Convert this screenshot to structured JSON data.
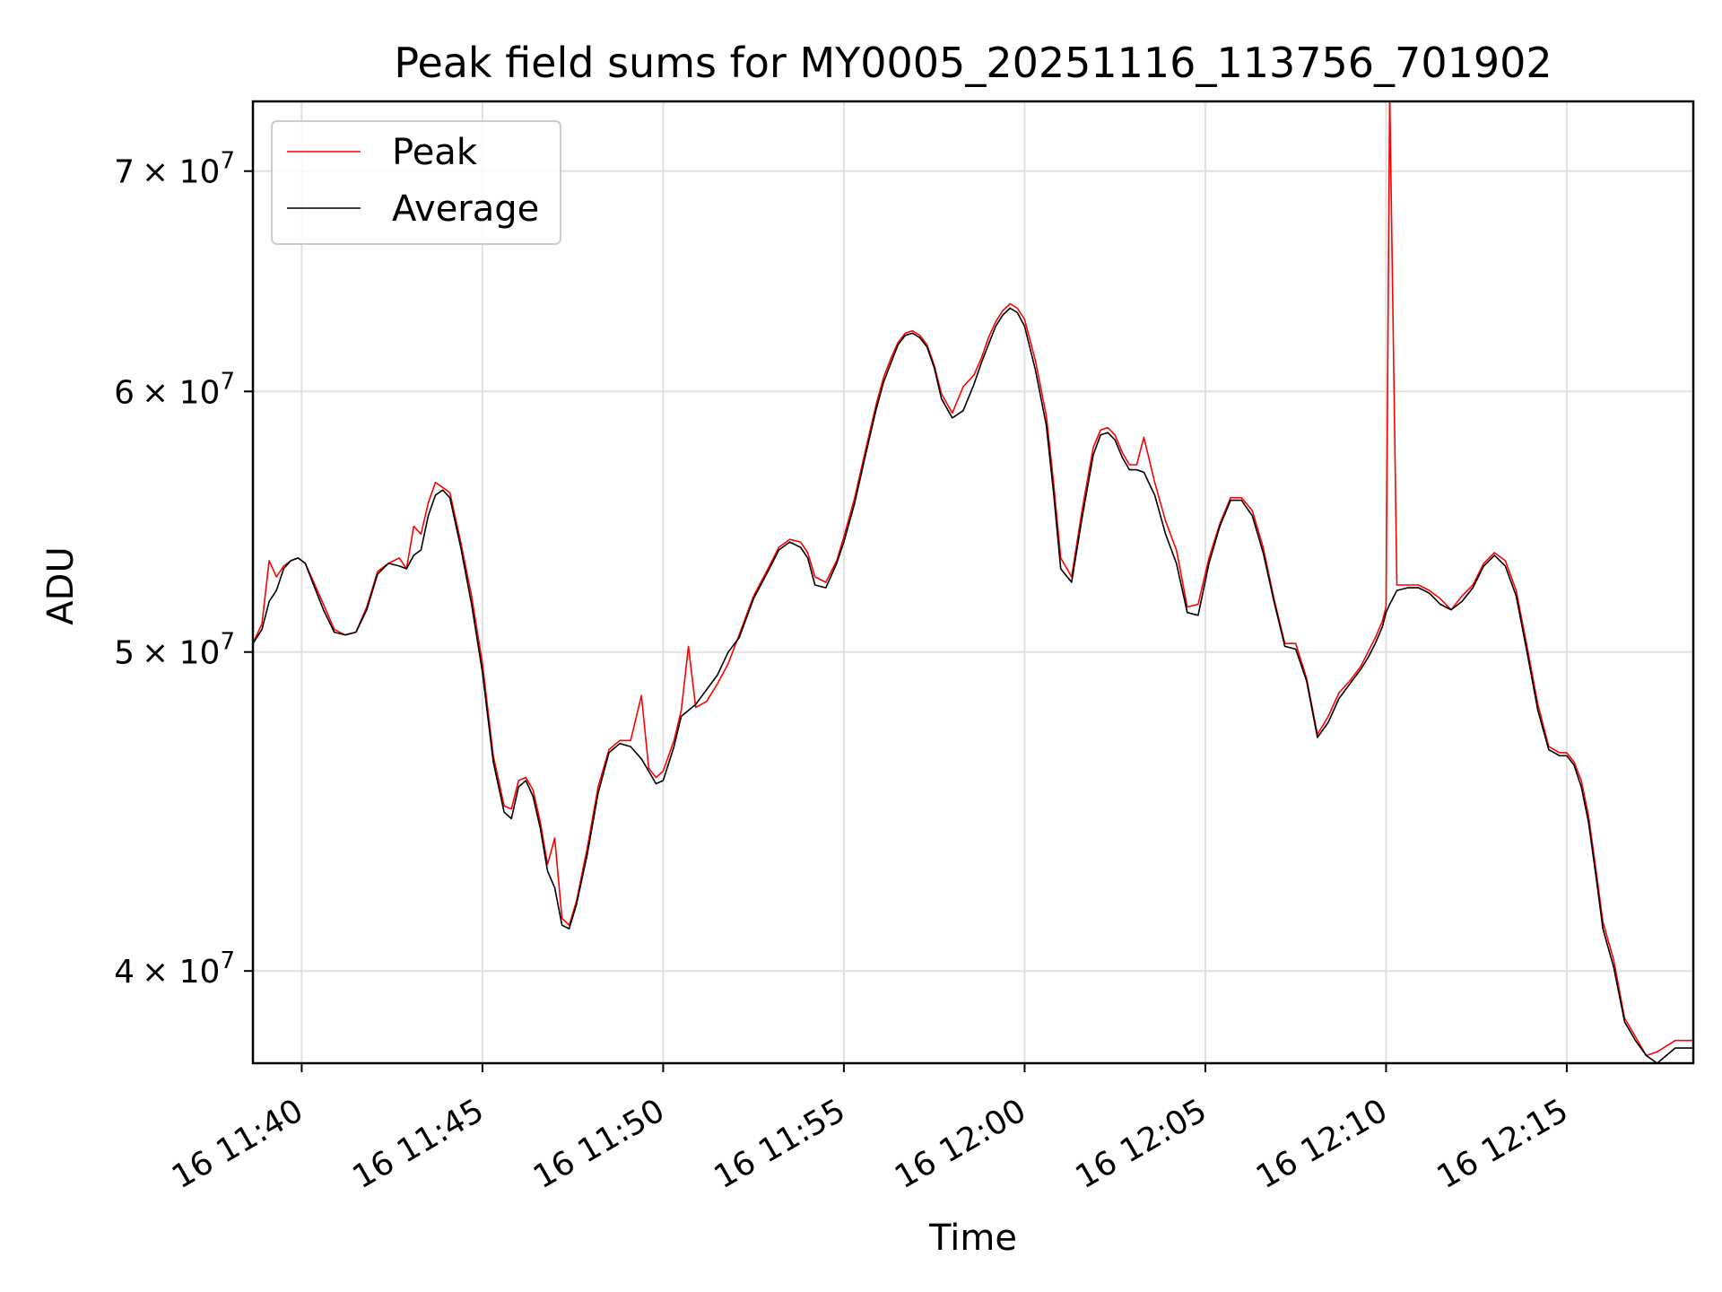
{
  "chart_data": {
    "type": "line",
    "title": "Peak field sums for MY0005_20251116_113756_701902",
    "xlabel": "Time",
    "ylabel": "ADU",
    "yscale": "log",
    "grid": true,
    "legend_position": "top-left",
    "xlim_minutes": [
      -1.35,
      38.5
    ],
    "ylim": [
      37500000,
      73500000
    ],
    "x_ticks": [
      {
        "minutes": 0,
        "label": "16 11:40"
      },
      {
        "minutes": 5,
        "label": "16 11:45"
      },
      {
        "minutes": 10,
        "label": "16 11:50"
      },
      {
        "minutes": 15,
        "label": "16 11:55"
      },
      {
        "minutes": 20,
        "label": "16 12:00"
      },
      {
        "minutes": 25,
        "label": "16 12:05"
      },
      {
        "minutes": 30,
        "label": "16 12:10"
      },
      {
        "minutes": 35,
        "label": "16 12:15"
      }
    ],
    "y_ticks": [
      {
        "value": 40000000,
        "mantissa": "4",
        "label": "4 × 10^7"
      },
      {
        "value": 50000000,
        "mantissa": "5",
        "label": "5 × 10^7"
      },
      {
        "value": 60000000,
        "mantissa": "6",
        "label": "6 × 10^7"
      },
      {
        "value": 70000000,
        "mantissa": "7",
        "label": "7 × 10^7"
      }
    ],
    "y_tick_suffix": "× 10",
    "y_tick_exponent": "7",
    "x_time_reference": "16 11:40 = minute 0",
    "series": [
      {
        "name": "Peak",
        "color": "#ff0000",
        "x_minutes": [
          -1.35,
          -1.1,
          -0.9,
          -0.7,
          -0.5,
          -0.3,
          -0.1,
          0.1,
          0.3,
          0.6,
          0.9,
          1.2,
          1.5,
          1.8,
          2.1,
          2.4,
          2.7,
          2.9,
          3.1,
          3.3,
          3.5,
          3.7,
          3.9,
          4.1,
          4.4,
          4.7,
          5.0,
          5.3,
          5.6,
          5.8,
          6.0,
          6.2,
          6.4,
          6.6,
          6.8,
          7.0,
          7.2,
          7.4,
          7.6,
          7.9,
          8.2,
          8.5,
          8.8,
          9.1,
          9.4,
          9.6,
          9.8,
          10.0,
          10.3,
          10.5,
          10.7,
          10.9,
          11.2,
          11.5,
          11.8,
          12.1,
          12.5,
          12.9,
          13.2,
          13.5,
          13.8,
          14.0,
          14.2,
          14.5,
          14.8,
          15.0,
          15.3,
          15.6,
          15.9,
          16.1,
          16.3,
          16.5,
          16.7,
          16.9,
          17.1,
          17.3,
          17.5,
          17.7,
          18.0,
          18.3,
          18.6,
          18.8,
          19.0,
          19.2,
          19.4,
          19.6,
          19.8,
          20.0,
          20.3,
          20.6,
          20.8,
          21.0,
          21.3,
          21.6,
          21.9,
          22.1,
          22.3,
          22.5,
          22.7,
          22.9,
          23.1,
          23.3,
          23.6,
          23.9,
          24.2,
          24.5,
          24.8,
          25.1,
          25.4,
          25.7,
          26.0,
          26.3,
          26.6,
          26.9,
          27.2,
          27.5,
          27.8,
          28.1,
          28.4,
          28.7,
          29.0,
          29.3,
          29.5,
          29.7,
          29.9,
          30.0,
          30.1,
          30.3,
          30.6,
          30.9,
          31.2,
          31.5,
          31.8,
          32.1,
          32.4,
          32.7,
          33.0,
          33.3,
          33.6,
          33.9,
          34.2,
          34.5,
          34.8,
          35.0,
          35.2,
          35.4,
          35.6,
          35.8,
          36.0,
          36.3,
          36.6,
          36.9,
          37.2,
          37.5,
          38.0,
          38.5
        ],
        "values": [
          50300000,
          51000000,
          53300000,
          52700000,
          53100000,
          53300000,
          53400000,
          53200000,
          52600000,
          51700000,
          50800000,
          50600000,
          50700000,
          51600000,
          52900000,
          53200000,
          53400000,
          53000000,
          54600000,
          54300000,
          55500000,
          56300000,
          56100000,
          55900000,
          54000000,
          52000000,
          49600000,
          46500000,
          44900000,
          44800000,
          45700000,
          45800000,
          45400000,
          44400000,
          43100000,
          43900000,
          41500000,
          41300000,
          42000000,
          43600000,
          45500000,
          46700000,
          47000000,
          47000000,
          48500000,
          46100000,
          45800000,
          46000000,
          47000000,
          48000000,
          50200000,
          48100000,
          48300000,
          48900000,
          49600000,
          50600000,
          52000000,
          53000000,
          53800000,
          54100000,
          54000000,
          53600000,
          52700000,
          52500000,
          53300000,
          54200000,
          55700000,
          57600000,
          59500000,
          60600000,
          61400000,
          62100000,
          62500000,
          62600000,
          62400000,
          62000000,
          61100000,
          59900000,
          59100000,
          60200000,
          60700000,
          61400000,
          62300000,
          63000000,
          63500000,
          63800000,
          63600000,
          63100000,
          61300000,
          59000000,
          56300000,
          53400000,
          52700000,
          55300000,
          57700000,
          58400000,
          58500000,
          58200000,
          57500000,
          57000000,
          57000000,
          58100000,
          56300000,
          54800000,
          53700000,
          51600000,
          51700000,
          53400000,
          54700000,
          55700000,
          55700000,
          55200000,
          53800000,
          51900000,
          50300000,
          50300000,
          49100000,
          47200000,
          47800000,
          48600000,
          49000000,
          49500000,
          50000000,
          50500000,
          51100000,
          51600000,
          74000000,
          52400000,
          52400000,
          52400000,
          52200000,
          51900000,
          51500000,
          52000000,
          52400000,
          53200000,
          53600000,
          53300000,
          52200000,
          50200000,
          48200000,
          46800000,
          46600000,
          46600000,
          46300000,
          45700000,
          44600000,
          43000000,
          41400000,
          40300000,
          38700000,
          38200000,
          37700000,
          37800000,
          38100000,
          38100000
        ]
      },
      {
        "name": "Average",
        "color": "#000000",
        "x_minutes": [
          -1.35,
          -1.1,
          -0.9,
          -0.7,
          -0.5,
          -0.3,
          -0.1,
          0.1,
          0.3,
          0.6,
          0.9,
          1.2,
          1.5,
          1.8,
          2.1,
          2.4,
          2.7,
          2.9,
          3.1,
          3.3,
          3.5,
          3.7,
          3.9,
          4.1,
          4.4,
          4.7,
          5.0,
          5.3,
          5.6,
          5.8,
          6.0,
          6.2,
          6.4,
          6.6,
          6.8,
          7.0,
          7.2,
          7.4,
          7.6,
          7.9,
          8.2,
          8.5,
          8.8,
          9.1,
          9.4,
          9.6,
          9.8,
          10.0,
          10.3,
          10.5,
          10.7,
          10.9,
          11.2,
          11.5,
          11.8,
          12.1,
          12.5,
          12.9,
          13.2,
          13.5,
          13.8,
          14.0,
          14.2,
          14.5,
          14.8,
          15.0,
          15.3,
          15.6,
          15.9,
          16.1,
          16.3,
          16.5,
          16.7,
          16.9,
          17.1,
          17.3,
          17.5,
          17.7,
          18.0,
          18.3,
          18.6,
          18.8,
          19.0,
          19.2,
          19.4,
          19.6,
          19.8,
          20.0,
          20.3,
          20.6,
          20.8,
          21.0,
          21.3,
          21.6,
          21.9,
          22.1,
          22.3,
          22.5,
          22.7,
          22.9,
          23.1,
          23.3,
          23.6,
          23.9,
          24.2,
          24.5,
          24.8,
          25.1,
          25.4,
          25.7,
          26.0,
          26.3,
          26.6,
          26.9,
          27.2,
          27.5,
          27.8,
          28.1,
          28.4,
          28.7,
          29.0,
          29.3,
          29.5,
          29.7,
          29.9,
          30.0,
          30.1,
          30.3,
          30.6,
          30.9,
          31.2,
          31.5,
          31.8,
          32.1,
          32.4,
          32.7,
          33.0,
          33.3,
          33.6,
          33.9,
          34.2,
          34.5,
          34.8,
          35.0,
          35.2,
          35.4,
          35.6,
          35.8,
          36.0,
          36.3,
          36.6,
          36.9,
          37.2,
          37.5,
          38.0,
          38.5
        ],
        "values": [
          50300000,
          50800000,
          51800000,
          52200000,
          53000000,
          53300000,
          53400000,
          53200000,
          52500000,
          51500000,
          50700000,
          50600000,
          50700000,
          51500000,
          52800000,
          53200000,
          53100000,
          53000000,
          53500000,
          53700000,
          55000000,
          55800000,
          56000000,
          55700000,
          53800000,
          51700000,
          49300000,
          46300000,
          44700000,
          44500000,
          45500000,
          45700000,
          45200000,
          44200000,
          42900000,
          42400000,
          41300000,
          41200000,
          41900000,
          43400000,
          45300000,
          46600000,
          46900000,
          46800000,
          46400000,
          46000000,
          45600000,
          45700000,
          46800000,
          47800000,
          48000000,
          48200000,
          48700000,
          49200000,
          50000000,
          50500000,
          51900000,
          52900000,
          53700000,
          54000000,
          53800000,
          53400000,
          52400000,
          52300000,
          53200000,
          54000000,
          55500000,
          57400000,
          59300000,
          60400000,
          61200000,
          62000000,
          62400000,
          62500000,
          62300000,
          61900000,
          61000000,
          59700000,
          58900000,
          59200000,
          60300000,
          61200000,
          62000000,
          62800000,
          63300000,
          63600000,
          63400000,
          62800000,
          60900000,
          58600000,
          55900000,
          53000000,
          52500000,
          55000000,
          57400000,
          58200000,
          58300000,
          58000000,
          57300000,
          56800000,
          56800000,
          56700000,
          55800000,
          54300000,
          53200000,
          51400000,
          51300000,
          53200000,
          54600000,
          55600000,
          55600000,
          55000000,
          53600000,
          51800000,
          50200000,
          50100000,
          49000000,
          47100000,
          47600000,
          48400000,
          48900000,
          49400000,
          49800000,
          50300000,
          50900000,
          51400000,
          51700000,
          52200000,
          52300000,
          52300000,
          52100000,
          51700000,
          51500000,
          51800000,
          52300000,
          53100000,
          53500000,
          53100000,
          52000000,
          50000000,
          48000000,
          46700000,
          46500000,
          46500000,
          46200000,
          45500000,
          44400000,
          42800000,
          41200000,
          40100000,
          38600000,
          38100000,
          37700000,
          37500000,
          37900000,
          37900000
        ]
      }
    ]
  }
}
